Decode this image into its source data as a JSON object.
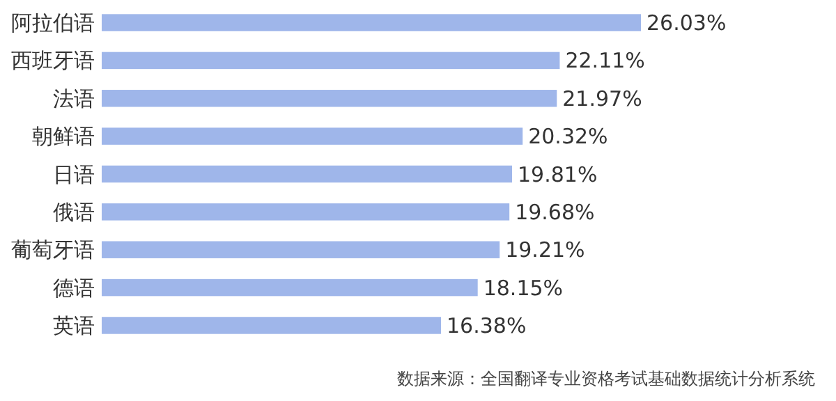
{
  "chart_data": {
    "type": "bar",
    "orientation": "horizontal",
    "categories": [
      "阿拉伯语",
      "西班牙语",
      "法语",
      "朝鲜语",
      "日语",
      "俄语",
      "葡萄牙语",
      "德语",
      "英语"
    ],
    "values": [
      26.03,
      22.11,
      21.97,
      20.32,
      19.81,
      19.68,
      19.21,
      18.15,
      16.38
    ],
    "value_labels": [
      "26.03%",
      "22.11%",
      "21.97%",
      "20.32%",
      "19.81%",
      "19.68%",
      "19.21%",
      "18.15%",
      "16.38%"
    ],
    "color": "#9fb6ea",
    "annotations": [
      "数据来源：全国翻译专业资格考试基础数据统计分析系统"
    ]
  }
}
